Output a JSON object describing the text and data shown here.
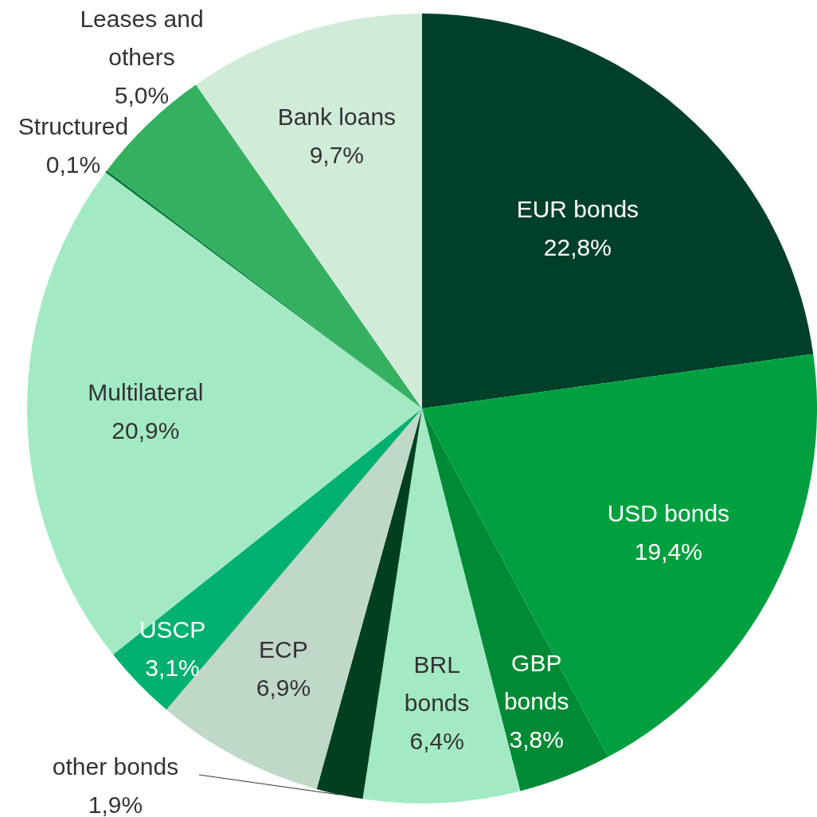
{
  "chart_data": {
    "type": "pie",
    "categories": [
      "EUR bonds",
      "USD bonds",
      "GBP bonds",
      "BRL bonds",
      "other bonds",
      "ECP",
      "USCP",
      "Multilateral",
      "Structured",
      "Leases and others",
      "Bank loans"
    ],
    "values": [
      22.8,
      19.4,
      3.8,
      6.4,
      1.9,
      6.9,
      3.1,
      20.9,
      0.1,
      5.0,
      9.7
    ],
    "value_labels": [
      "22,8%",
      "19,4%",
      "3,8%",
      "6,4%",
      "1,9%",
      "6,9%",
      "3,1%",
      "20,9%",
      "0,1%",
      "5,0%",
      "9,7%"
    ],
    "colors": [
      "#00402a",
      "#00a040",
      "#008a35",
      "#a3eac4",
      "#004020",
      "#c0d8c8",
      "#00b070",
      "#a3eac4",
      "#007a3a",
      "#34b060",
      "#d0ecd8"
    ],
    "legend": false
  }
}
